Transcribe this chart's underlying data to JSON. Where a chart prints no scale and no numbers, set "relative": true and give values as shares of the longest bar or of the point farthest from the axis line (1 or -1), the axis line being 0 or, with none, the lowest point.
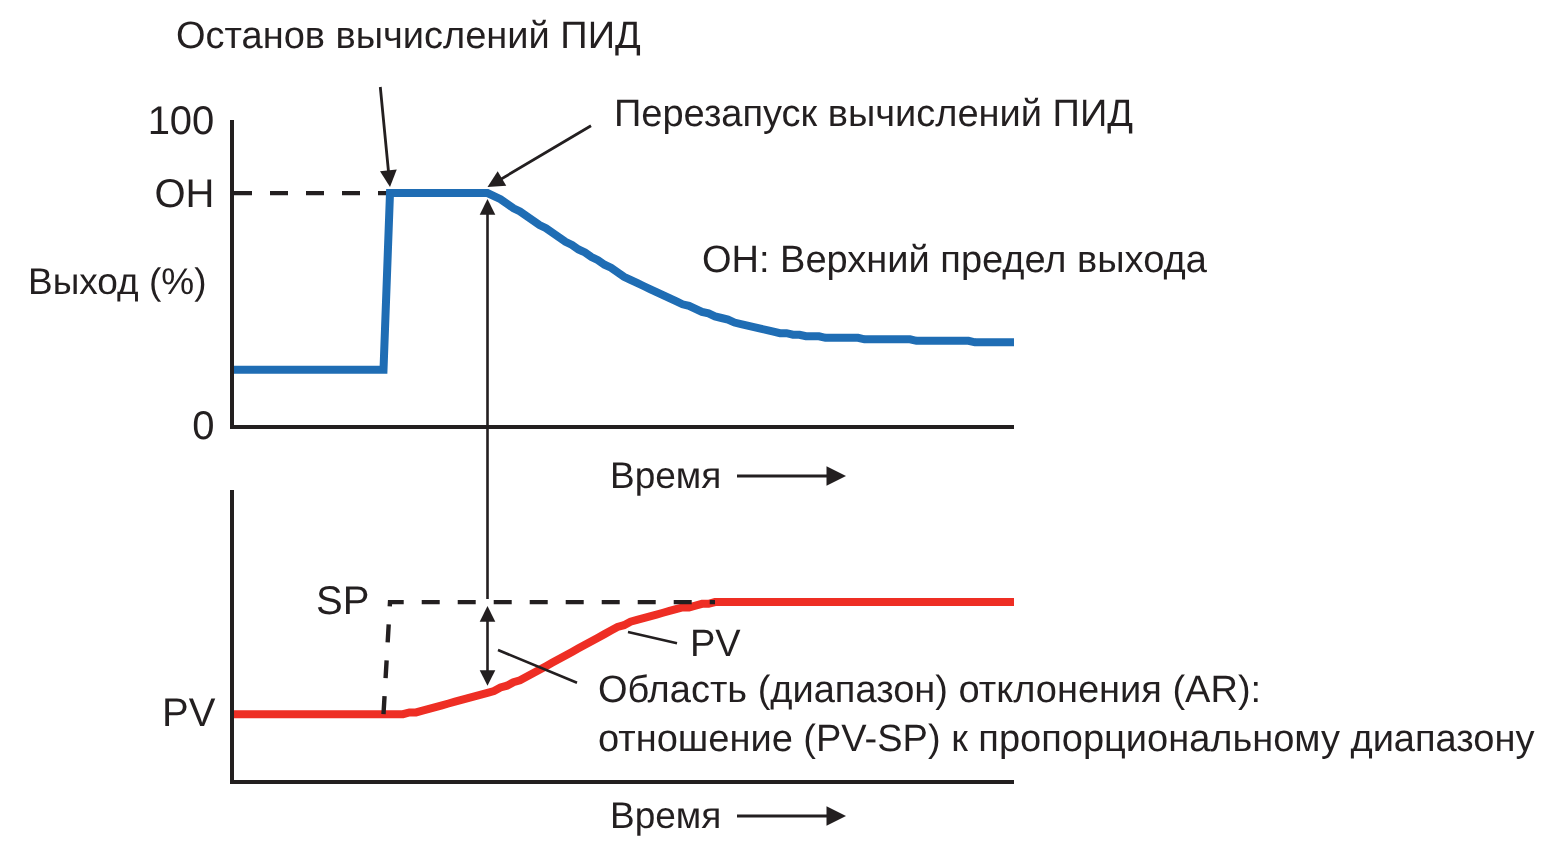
{
  "chart_data": [
    {
      "type": "line",
      "xlabel": "Время",
      "ylabel": "Выход (%)",
      "tick_labels": "y",
      "ylim": [
        0,
        100
      ],
      "yticks": [
        0,
        {
          "value": 76,
          "label": "ОН"
        },
        100
      ],
      "categories": [
        null,
        null,
        null,
        null,
        null,
        null,
        null,
        null,
        null,
        null,
        null,
        null,
        null,
        null,
        null,
        null,
        null,
        null,
        null,
        null,
        null,
        null,
        null,
        null,
        null,
        null,
        null,
        null,
        null,
        null,
        null,
        null,
        null,
        null,
        null,
        null,
        null,
        null,
        null,
        null,
        null,
        null,
        null,
        null,
        null,
        null,
        null,
        null,
        null,
        null,
        null,
        null,
        null,
        null,
        null,
        null,
        null,
        null,
        null,
        null,
        null,
        null,
        null,
        null,
        null,
        null,
        null,
        null,
        null,
        null,
        null,
        null,
        null,
        null,
        null,
        null,
        null,
        null,
        null,
        null,
        null,
        null,
        null,
        null,
        null,
        null,
        null,
        null,
        null,
        null,
        null,
        null,
        null,
        null,
        null,
        null,
        null,
        null,
        null,
        null,
        null,
        null,
        null,
        null,
        null,
        null,
        null,
        null,
        null,
        null,
        null,
        null,
        null,
        null,
        null,
        null,
        null,
        null,
        null,
        null,
        null
      ],
      "series": [
        {
          "color": "#1f6db4",
          "values": [
            18,
            18,
            18,
            18,
            18,
            18,
            18,
            18,
            18,
            18,
            18,
            18,
            18,
            18,
            18,
            18,
            18,
            18,
            18,
            18,
            18,
            18,
            18,
            18,
            76,
            76,
            76,
            76,
            76,
            76,
            76,
            76,
            76,
            76,
            76,
            76,
            76,
            76,
            76,
            76,
            75,
            74,
            72.5,
            71,
            70,
            68.5,
            67,
            65.5,
            64.5,
            63,
            61.5,
            60,
            59,
            57.5,
            56.5,
            55,
            54,
            52.5,
            51.5,
            50,
            48.5,
            47.5,
            46.5,
            45.5,
            44.5,
            43.5,
            42.5,
            41.5,
            40.5,
            39.5,
            39,
            38,
            37,
            36.5,
            35.5,
            35,
            34.5,
            33.5,
            33,
            32.5,
            32,
            31.5,
            31,
            30.5,
            30,
            30,
            29.5,
            29.5,
            29,
            29,
            29,
            28.5,
            28.5,
            28.5,
            28.5,
            28.5,
            28.5,
            28,
            28,
            28,
            28,
            28,
            28,
            28,
            28,
            27.5,
            27.5,
            27.5,
            27.5,
            27.5,
            27.5,
            27.5,
            27.5,
            27.5,
            27,
            27,
            27,
            27,
            27,
            27,
            27
          ]
        }
      ],
      "ref_lines": [
        {
          "axis": "y",
          "value": 76,
          "color": "#231f20",
          "line_style": "dashed"
        }
      ],
      "annotations": [
        "Останов вычислений ПИД",
        "Перезапуск вычислений ПИД",
        "ОН: Верхний предел выхода"
      ]
    },
    {
      "type": "line",
      "relative": true,
      "xlabel": "Время",
      "tick_labels": false,
      "categories": [
        null,
        null,
        null,
        null,
        null,
        null,
        null,
        null,
        null,
        null,
        null,
        null,
        null,
        null,
        null,
        null,
        null,
        null,
        null,
        null,
        null,
        null,
        null,
        null,
        null,
        null,
        null,
        null,
        null,
        null,
        null,
        null,
        null,
        null,
        null,
        null,
        null,
        null,
        null,
        null,
        null,
        null,
        null,
        null,
        null,
        null,
        null,
        null,
        null,
        null,
        null,
        null,
        null,
        null,
        null,
        null,
        null,
        null,
        null,
        null,
        null,
        null,
        null,
        null,
        null,
        null,
        null,
        null,
        null,
        null,
        null,
        null,
        null,
        null,
        null,
        null,
        null,
        null,
        null,
        null,
        null,
        null,
        null,
        null,
        null,
        null,
        null,
        null,
        null,
        null,
        null,
        null,
        null,
        null,
        null,
        null,
        null,
        null,
        null,
        null,
        null,
        null,
        null,
        null,
        null,
        null,
        null,
        null,
        null,
        null,
        null,
        null,
        null,
        null,
        null,
        null,
        null,
        null,
        null,
        null,
        null
      ],
      "series": [
        {
          "name": "PV",
          "color": "#ee2e24",
          "values": [
            0.37,
            0.37,
            0.37,
            0.37,
            0.37,
            0.37,
            0.37,
            0.37,
            0.37,
            0.37,
            0.37,
            0.37,
            0.37,
            0.37,
            0.37,
            0.37,
            0.37,
            0.37,
            0.37,
            0.37,
            0.37,
            0.37,
            0.37,
            0.37,
            0.37,
            0.37,
            0.37,
            0.38,
            0.38,
            0.39,
            0.4,
            0.41,
            0.42,
            0.43,
            0.44,
            0.45,
            0.46,
            0.47,
            0.48,
            0.49,
            0.5,
            0.52,
            0.53,
            0.55,
            0.56,
            0.58,
            0.6,
            0.62,
            0.64,
            0.66,
            0.68,
            0.7,
            0.72,
            0.74,
            0.76,
            0.78,
            0.8,
            0.82,
            0.84,
            0.86,
            0.87,
            0.89,
            0.9,
            0.91,
            0.92,
            0.93,
            0.94,
            0.95,
            0.96,
            0.97,
            0.97,
            0.98,
            0.99,
            0.99,
            1,
            1,
            1,
            1,
            1,
            1,
            1,
            1,
            1,
            1,
            1,
            1,
            1,
            1,
            1,
            1,
            1,
            1,
            1,
            1,
            1,
            1,
            1,
            1,
            1,
            1,
            1,
            1,
            1,
            1,
            1,
            1,
            1,
            1,
            1,
            1,
            1,
            1,
            1,
            1,
            1,
            1,
            1,
            1,
            1,
            1,
            1
          ]
        },
        {
          "name": "SP",
          "color": "#231f20",
          "line_style": "dashed",
          "values": [
            null,
            null,
            null,
            null,
            null,
            null,
            null,
            null,
            null,
            null,
            null,
            null,
            null,
            null,
            null,
            null,
            null,
            null,
            null,
            null,
            null,
            null,
            null,
            0.37,
            1,
            1,
            1,
            1,
            1,
            1,
            1,
            1,
            1,
            1,
            1,
            1,
            1,
            1,
            1,
            1,
            1,
            1,
            1,
            1,
            1,
            1,
            1,
            1,
            1,
            1,
            1,
            1,
            1,
            1,
            1,
            1,
            1,
            1,
            1,
            1,
            1,
            1,
            1,
            1,
            1,
            1,
            1,
            1,
            1,
            1,
            1,
            1,
            1,
            1,
            1,
            null,
            null,
            null,
            null,
            null,
            null,
            null,
            null,
            null,
            null,
            null,
            null,
            null,
            null,
            null,
            null,
            null,
            null,
            null,
            null,
            null,
            null,
            null,
            null,
            null,
            null,
            null,
            null,
            null,
            null,
            null,
            null,
            null,
            null,
            null,
            null,
            null,
            null,
            null,
            null,
            null,
            null,
            null,
            null,
            null,
            null
          ]
        }
      ],
      "annotations": [
        "PV",
        "Область (диапазон) отклонения (AR):\nотношение (PV-SP) к пропорциональному диапазону"
      ]
    }
  ]
}
